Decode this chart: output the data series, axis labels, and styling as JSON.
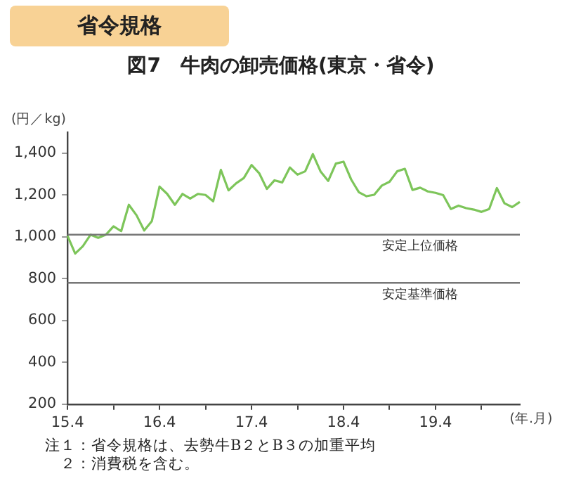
{
  "chart_data": {
    "type": "line",
    "title": "図7　牛肉の卸売価格(東京・省令)",
    "ylabel": "(円／kg)",
    "xlabel": "(年.月)",
    "annotations": [
      "省令規格",
      "注１：省令規格は、去勢牛B２とB３の加重平均",
      "　２：消費税を含む。"
    ],
    "categories": [
      "15.4",
      null,
      null,
      null,
      null,
      null,
      null,
      null,
      null,
      null,
      null,
      null,
      "16.4",
      null,
      null,
      null,
      null,
      null,
      null,
      null,
      null,
      null,
      null,
      null,
      "17.4",
      null,
      null,
      null,
      null,
      null,
      null,
      null,
      null,
      null,
      null,
      null,
      "18.4",
      null,
      null,
      null,
      null,
      null,
      null,
      null,
      null,
      null,
      null,
      null,
      "19.4",
      null,
      null,
      null,
      null,
      null,
      null,
      null,
      null,
      null,
      null,
      null
    ],
    "series": [
      {
        "color": "#7dc55a",
        "values": [
          1005,
          920,
          955,
          1010,
          995,
          1010,
          1050,
          1027,
          1153,
          1103,
          1030,
          1075,
          1240,
          1205,
          1153,
          1205,
          1183,
          1205,
          1200,
          1170,
          1320,
          1222,
          1256,
          1281,
          1343,
          1304,
          1229,
          1270,
          1260,
          1331,
          1297,
          1313,
          1395,
          1313,
          1267,
          1350,
          1359,
          1274,
          1213,
          1194,
          1201,
          1245,
          1263,
          1313,
          1325,
          1224,
          1235,
          1217,
          1210,
          1199,
          1133,
          1149,
          1137,
          1130,
          1119,
          1133,
          1233,
          1160,
          1142,
          1167
        ]
      }
    ],
    "ylim": [
      200,
      1500
    ],
    "yticks": [
      200,
      400,
      600,
      800,
      {
        "value": 1000,
        "label": "1,000"
      },
      {
        "value": 1200,
        "label": "1,200"
      },
      {
        "value": 1400,
        "label": "1,400"
      }
    ],
    "ref_lines": [
      {
        "axis": "y",
        "value": 1010,
        "label": "安定上位価格",
        "color": "#777777"
      },
      {
        "axis": "y",
        "value": 780,
        "label": "安定基準価格",
        "color": "#777777"
      }
    ],
    "grid": false,
    "legend": false,
    "marker": "none",
    "line_style": "solid"
  }
}
